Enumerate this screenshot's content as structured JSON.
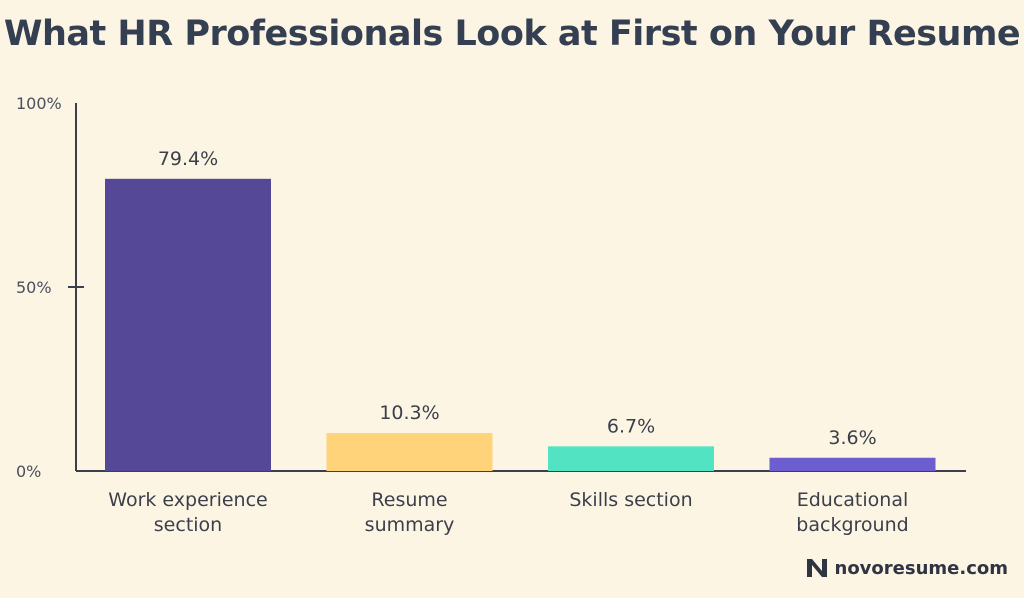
{
  "chart_data": {
    "type": "bar",
    "title": "What HR Professionals Look at First on Your Resume",
    "categories": [
      [
        "Work experience",
        "section"
      ],
      [
        "Resume",
        "summary"
      ],
      [
        "Skills section"
      ],
      [
        "Educational",
        "background"
      ]
    ],
    "values": [
      79.4,
      10.3,
      6.7,
      3.6
    ],
    "value_labels": [
      "79.4%",
      "10.3%",
      "6.7%",
      "3.6%"
    ],
    "ylim": [
      0,
      100
    ],
    "yticks": [
      0,
      50,
      100
    ],
    "ytick_labels": [
      "0%",
      "50%",
      "100%"
    ],
    "grid": false,
    "legend": "none",
    "colors": [
      "#544897",
      "#fed37a",
      "#52e3c2",
      "#6c5ecf"
    ]
  },
  "brand": {
    "text": "novoresume.com",
    "logo_icon": "n-logo-icon"
  }
}
